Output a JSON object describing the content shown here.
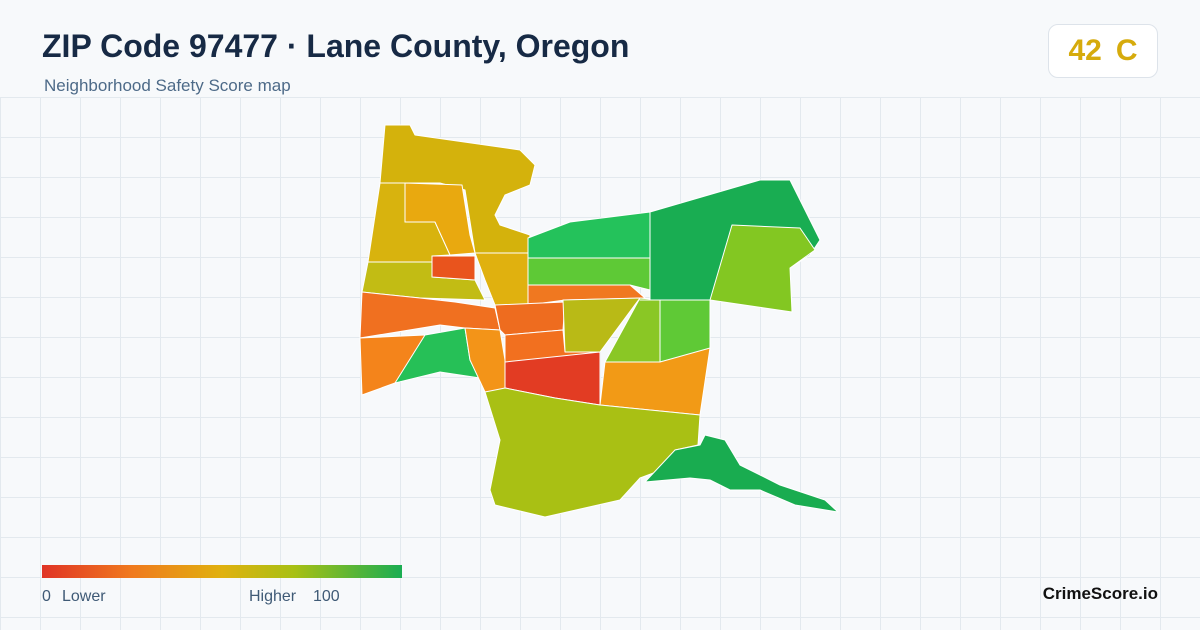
{
  "header": {
    "title": "ZIP Code 97477 · Lane County, Oregon",
    "subtitle": "Neighborhood Safety Score map"
  },
  "score": {
    "value": 42,
    "grade": "C"
  },
  "legend": {
    "min": 0,
    "min_label": "Lower",
    "max_label": "Higher",
    "max": 100
  },
  "brand": "CrimeScore.io"
}
